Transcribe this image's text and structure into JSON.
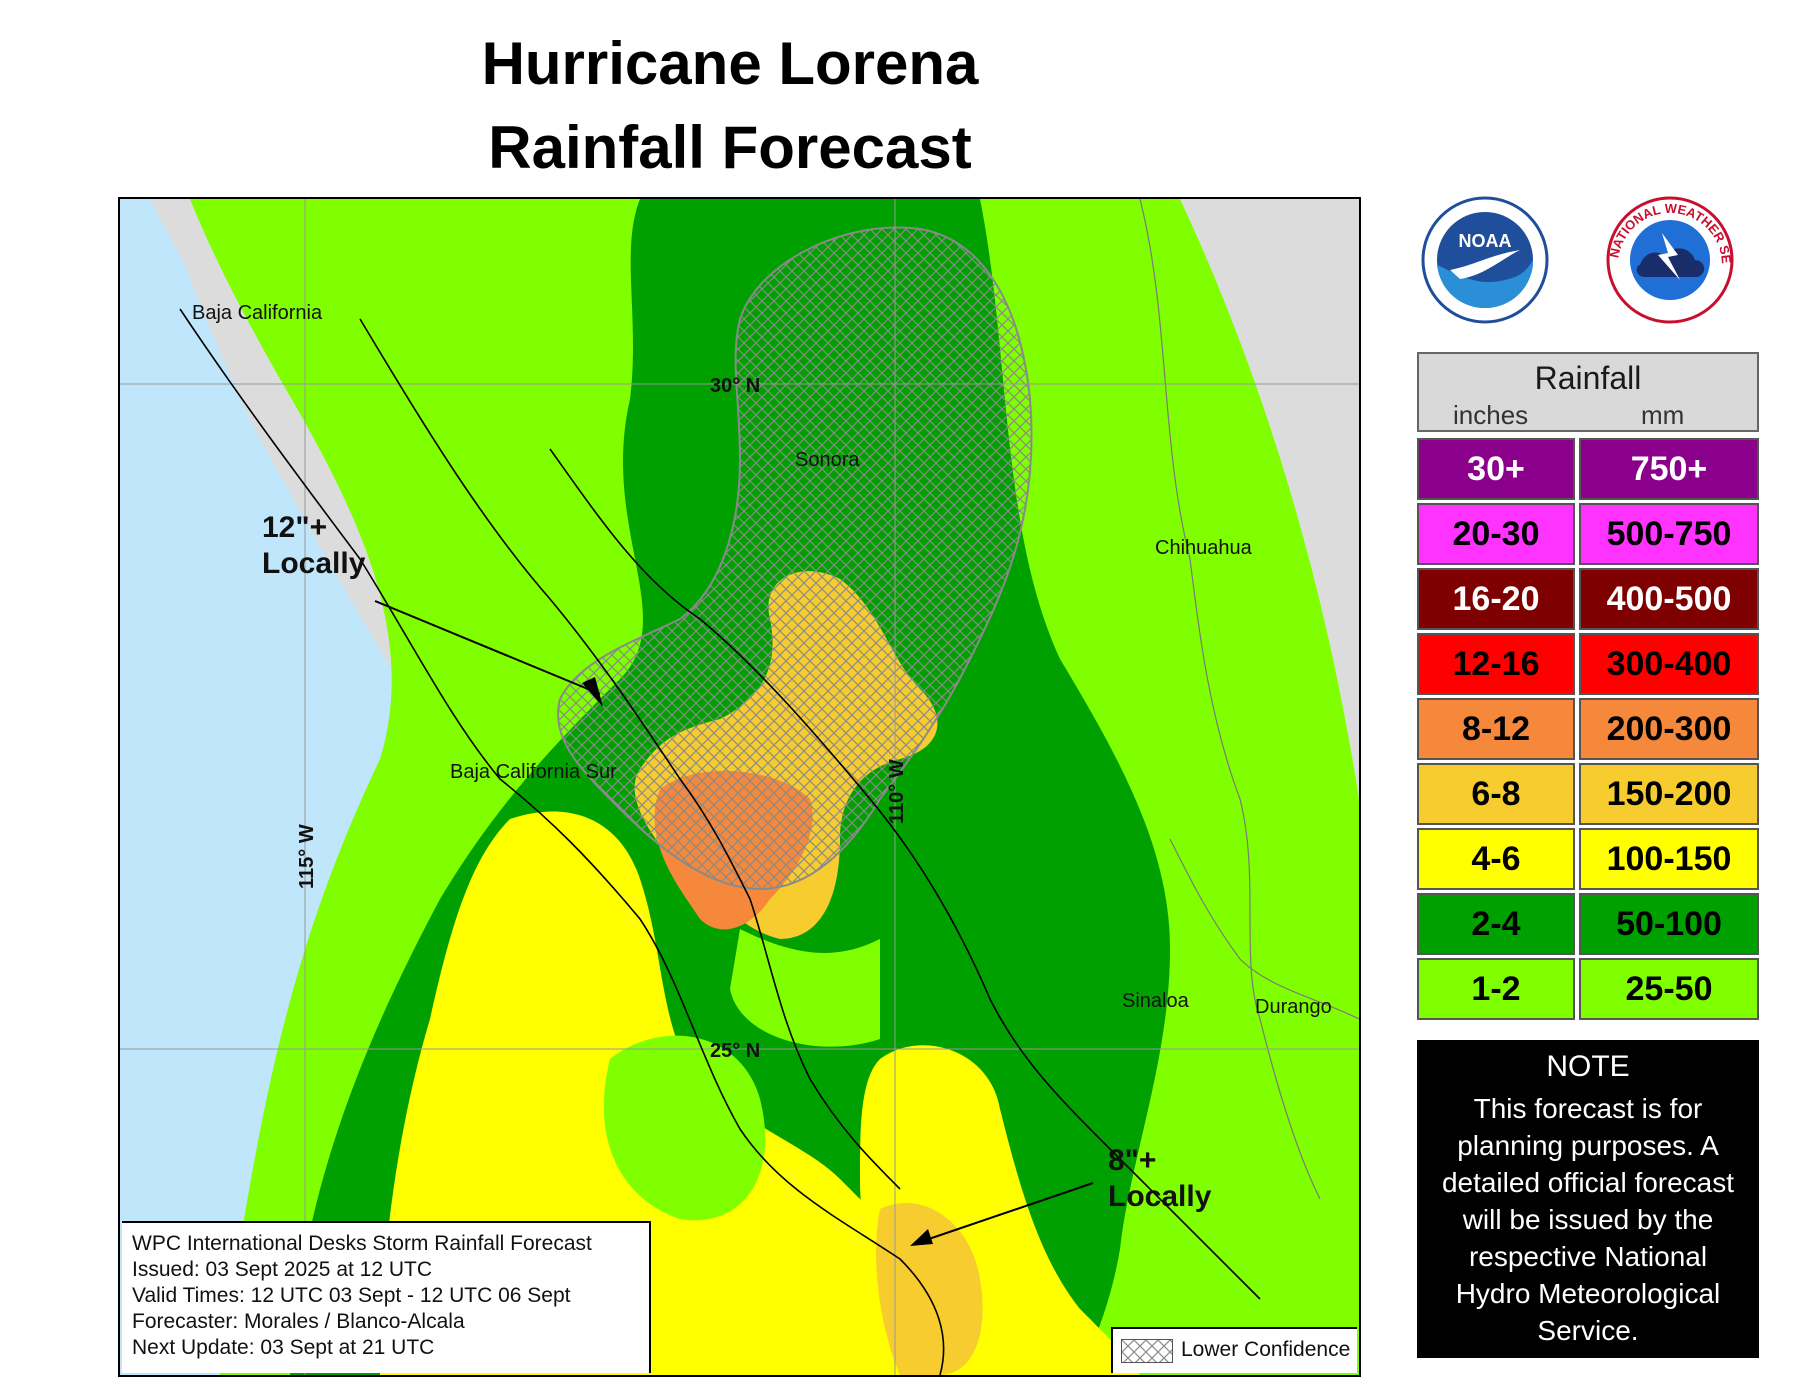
{
  "title_line1": "Hurricane Lorena",
  "title_line2": "Rainfall Forecast",
  "map": {
    "region_labels": [
      "Baja California",
      "Sonora",
      "Chihuahua",
      "Baja California Sur",
      "Sinaloa",
      "Durango"
    ],
    "grid_labels": {
      "lat30": "30° N",
      "lat25": "25° N",
      "lon110": "110° W",
      "lon115": "115° W"
    },
    "annotation_north": {
      "line1": "12\"+",
      "line2": "Locally"
    },
    "annotation_south": {
      "line1": "8\"+",
      "line2": "Locally"
    },
    "colors": {
      "land": "#dcdcdc",
      "water": "#bfe6fb",
      "band_1_2": "#80ff00",
      "band_2_4": "#00a000",
      "band_4_6": "#ffff00",
      "band_6_8": "#f7cc2e",
      "band_8_12": "#f5883a",
      "hatch": "#8a8a8a"
    }
  },
  "info_box": {
    "line1": "WPC International Desks Storm Rainfall Forecast",
    "line2": "Issued: 03 Sept 2025 at 12 UTC",
    "line3": "Valid Times: 12 UTC 03 Sept - 12 UTC 06 Sept",
    "line4": "Forecaster: Morales / Blanco-Alcala",
    "line5": "Next Update: 03 Sept at 21 UTC"
  },
  "lower_confidence_label": "Lower Confidence",
  "logos": {
    "noaa": {
      "icon": "noaa-logo",
      "text": "NOAA"
    },
    "nws": {
      "icon": "nws-logo",
      "text": "NATIONAL WEATHER SERVICE"
    }
  },
  "legend": {
    "title": "Rainfall",
    "unit_in": "inches",
    "unit_mm": "mm",
    "rows": [
      {
        "inches": "30+",
        "mm": "750+",
        "color": "#8b008b",
        "text_color": "#ffffff"
      },
      {
        "inches": "20-30",
        "mm": "500-750",
        "color": "#ff33ff",
        "text_color": "#000000"
      },
      {
        "inches": "16-20",
        "mm": "400-500",
        "color": "#7f0000",
        "text_color": "#ffffff"
      },
      {
        "inches": "12-16",
        "mm": "300-400",
        "color": "#ff0000",
        "text_color": "#000000"
      },
      {
        "inches": "8-12",
        "mm": "200-300",
        "color": "#f5883a",
        "text_color": "#000000"
      },
      {
        "inches": "6-8",
        "mm": "150-200",
        "color": "#f7cc2e",
        "text_color": "#000000"
      },
      {
        "inches": "4-6",
        "mm": "100-150",
        "color": "#ffff00",
        "text_color": "#000000"
      },
      {
        "inches": "2-4",
        "mm": "50-100",
        "color": "#00a000",
        "text_color": "#000000"
      },
      {
        "inches": "1-2",
        "mm": "25-50",
        "color": "#80ff00",
        "text_color": "#000000"
      }
    ]
  },
  "note": {
    "title": "NOTE",
    "body": "This forecast is for planning purposes. A detailed official forecast will be issued by the respective National Hydro Meteorological Service."
  }
}
